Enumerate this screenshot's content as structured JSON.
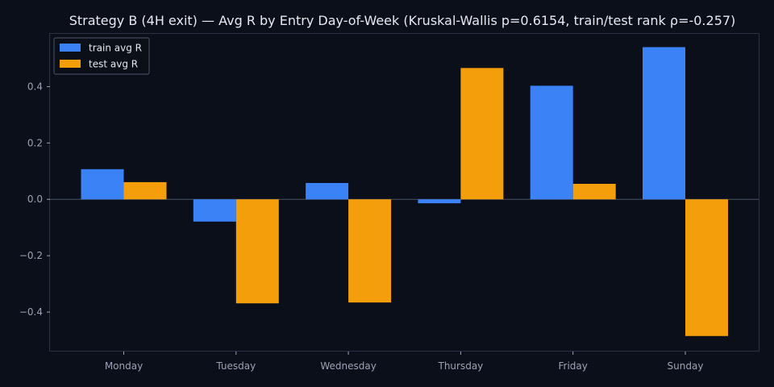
{
  "chart_data": {
    "type": "bar",
    "title": "Strategy B (4H exit) — Avg R by Entry Day-of-Week (Kruskal-Wallis p=0.6154, train/test rank ρ=-0.257)",
    "xlabel": "",
    "ylabel": "",
    "categories": [
      "Monday",
      "Tuesday",
      "Wednesday",
      "Thursday",
      "Friday",
      "Sunday"
    ],
    "series": [
      {
        "name": "train avg R",
        "color": "#3b82f6",
        "values": [
          0.107,
          -0.079,
          0.058,
          -0.014,
          0.403,
          0.54
        ]
      },
      {
        "name": "test avg R",
        "color": "#f59e0b",
        "values": [
          0.061,
          -0.369,
          -0.366,
          0.466,
          0.055,
          -0.485
        ]
      }
    ],
    "ylim": [
      -0.54,
      0.59
    ],
    "yticks": [
      -0.4,
      -0.2,
      0.0,
      0.2,
      0.4
    ],
    "ytick_labels": [
      "−0.4",
      "−0.2",
      "0.0",
      "0.2",
      "0.4"
    ],
    "grid": false,
    "legend_position": "top-left",
    "colors": {
      "background": "#0b0f19",
      "axes_frame": "#2a3142",
      "zero_line": "#4b5466",
      "text": "#e6e9ef",
      "tick_text": "#9aa3b5"
    }
  }
}
